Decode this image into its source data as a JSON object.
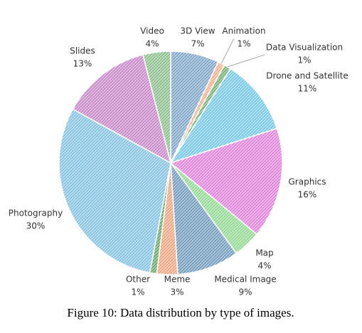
{
  "chart_data": {
    "type": "pie",
    "categories": [
      "3D View",
      "Animation",
      "Data Visualization",
      "Drone and Satellite",
      "Graphics",
      "Map",
      "Medical Image",
      "Meme",
      "Other",
      "Photography",
      "Slides",
      "Video"
    ],
    "values": [
      7,
      1,
      1,
      11,
      16,
      4,
      9,
      3,
      1,
      30,
      13,
      4
    ],
    "value_labels": [
      "7%",
      "1%",
      "1%",
      "11%",
      "16%",
      "4%",
      "9%",
      "3%",
      "1%",
      "30%",
      "13%",
      "4%"
    ],
    "colors": [
      "#5b8db8",
      "#ef9a6a",
      "#4e9a4e",
      "#4fb8dc",
      "#d65fcf",
      "#74cc74",
      "#4a7fa8",
      "#e58c5c",
      "#3f8f3f",
      "#62b2d8",
      "#b867b8",
      "#6aae6a"
    ],
    "caption": "Figure 10: Data distribution by type of images."
  }
}
